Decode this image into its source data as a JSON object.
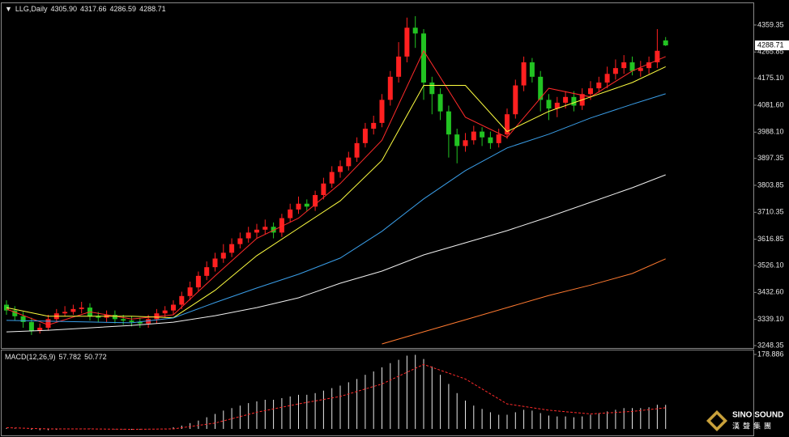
{
  "chart_data": [
    {
      "type": "candlestick",
      "ylim": [
        3240,
        4432
      ],
      "yticks": [
        {
          "value": 4359.35,
          "label": "4359.35"
        },
        {
          "value": 4265.85,
          "label": "4265.85"
        },
        {
          "value": 4175.1,
          "label": "4175.10"
        },
        {
          "value": 4081.6,
          "label": "4081.60"
        },
        {
          "value": 3988.1,
          "label": "3988.10"
        },
        {
          "value": 3897.35,
          "label": "3897.35"
        },
        {
          "value": 3803.85,
          "label": "3803.85"
        },
        {
          "value": 3710.35,
          "label": "3710.35"
        },
        {
          "value": 3616.85,
          "label": "3616.85"
        },
        {
          "value": 3526.1,
          "label": "3526.10"
        },
        {
          "value": 3432.6,
          "label": "3432.60"
        },
        {
          "value": 3339.1,
          "label": "3339.10"
        },
        {
          "value": 3248.35,
          "label": "3248.35"
        }
      ],
      "series": [
        {
          "name": "LLG,Daily",
          "up_color": "#ff2020",
          "down_color": "#22c322",
          "ohlc_labels": [
            "4305.90",
            "4317.66",
            "4286.59",
            "4288.71"
          ],
          "open": [
            3390,
            3370,
            3350,
            3330,
            3300,
            3310,
            3340,
            3360,
            3365,
            3375,
            3380,
            3350,
            3345,
            3355,
            3340,
            3335,
            3330,
            3325,
            3340,
            3360,
            3370,
            3390,
            3420,
            3450,
            3490,
            3520,
            3550,
            3570,
            3600,
            3620,
            3640,
            3650,
            3660,
            3640,
            3690,
            3720,
            3740,
            3730,
            3770,
            3810,
            3850,
            3870,
            3900,
            3950,
            4000,
            4020,
            4100,
            4180,
            4250,
            4350,
            4330,
            4160,
            4120,
            4060,
            3980,
            3940,
            3960,
            3990,
            3970,
            3950,
            3980,
            4050,
            4150,
            4230,
            4180,
            4100,
            4070,
            4090,
            4110,
            4080,
            4120,
            4140,
            4160,
            4190,
            4210,
            4230,
            4200,
            4210,
            4230,
            4305.9
          ],
          "high": [
            3405,
            3385,
            3365,
            3345,
            3325,
            3355,
            3375,
            3385,
            3390,
            3400,
            3395,
            3365,
            3370,
            3370,
            3355,
            3350,
            3345,
            3355,
            3375,
            3385,
            3405,
            3435,
            3470,
            3505,
            3540,
            3570,
            3600,
            3620,
            3640,
            3660,
            3670,
            3685,
            3675,
            3705,
            3740,
            3765,
            3755,
            3785,
            3830,
            3870,
            3890,
            3920,
            3970,
            4020,
            4045,
            4120,
            4200,
            4300,
            4385,
            4390,
            4345,
            4180,
            4140,
            4080,
            4000,
            3985,
            4010,
            4005,
            3990,
            4000,
            4070,
            4170,
            4250,
            4245,
            4200,
            4120,
            4110,
            4130,
            4130,
            4140,
            4165,
            4180,
            4215,
            4240,
            4255,
            4250,
            4235,
            4250,
            4345,
            4317.66
          ],
          "low": [
            3355,
            3335,
            3310,
            3285,
            3290,
            3300,
            3330,
            3350,
            3355,
            3360,
            3335,
            3330,
            3330,
            3325,
            3320,
            3315,
            3310,
            3310,
            3325,
            3345,
            3355,
            3375,
            3405,
            3435,
            3475,
            3505,
            3535,
            3555,
            3585,
            3605,
            3620,
            3635,
            3620,
            3625,
            3675,
            3705,
            3715,
            3715,
            3755,
            3795,
            3830,
            3855,
            3885,
            3935,
            3980,
            4005,
            4080,
            4160,
            4230,
            4280,
            4100,
            4050,
            4030,
            3900,
            3880,
            3920,
            3945,
            3940,
            3930,
            3935,
            3965,
            4035,
            4130,
            4160,
            4060,
            4030,
            4040,
            4070,
            4060,
            4065,
            4100,
            4125,
            4140,
            4170,
            4190,
            4185,
            4180,
            4190,
            4210,
            4286.59
          ],
          "close": [
            3370,
            3350,
            3330,
            3300,
            3310,
            3340,
            3360,
            3365,
            3375,
            3380,
            3350,
            3345,
            3355,
            3340,
            3335,
            3330,
            3325,
            3340,
            3360,
            3370,
            3390,
            3420,
            3450,
            3490,
            3520,
            3550,
            3570,
            3600,
            3620,
            3640,
            3650,
            3660,
            3640,
            3690,
            3720,
            3740,
            3730,
            3770,
            3810,
            3850,
            3870,
            3900,
            3950,
            4000,
            4020,
            4100,
            4180,
            4250,
            4350,
            4330,
            4160,
            4120,
            4060,
            3980,
            3940,
            3960,
            3990,
            3970,
            3950,
            3980,
            4050,
            4150,
            4230,
            4180,
            4100,
            4070,
            4090,
            4110,
            4080,
            4120,
            4140,
            4160,
            4190,
            4210,
            4230,
            4200,
            4210,
            4230,
            4270,
            4288.71
          ]
        },
        {
          "color": "#ff2a2a",
          "x": [
            0,
            5,
            10,
            15,
            20,
            25,
            30,
            35,
            40,
            45,
            50,
            55,
            60,
            65,
            70,
            75,
            79
          ],
          "values": [
            3375,
            3320,
            3365,
            3340,
            3355,
            3490,
            3620,
            3690,
            3810,
            3960,
            4270,
            4040,
            3970,
            4140,
            4110,
            4200,
            4250
          ]
        },
        {
          "color": "#ffff40",
          "x": [
            0,
            5,
            10,
            15,
            20,
            25,
            30,
            35,
            40,
            45,
            50,
            55,
            60,
            65,
            70,
            75,
            79
          ],
          "values": [
            3380,
            3350,
            3350,
            3350,
            3345,
            3440,
            3560,
            3655,
            3750,
            3890,
            4150,
            4150,
            3990,
            4060,
            4110,
            4160,
            4215
          ]
        },
        {
          "color": "#3a9ee8",
          "x": [
            0,
            5,
            10,
            15,
            20,
            25,
            30,
            35,
            40,
            45,
            50,
            55,
            60,
            65,
            70,
            75,
            79
          ],
          "values": [
            3335.6,
            3332.8,
            3330,
            3327.2,
            3344,
            3397.4,
            3447.9,
            3495.6,
            3551.7,
            3644.3,
            3756.5,
            3854.7,
            3933.3,
            3981,
            4037,
            4084.7,
            4121
          ]
        },
        {
          "color": "#f0f0f0",
          "x": [
            0,
            5,
            10,
            15,
            20,
            25,
            30,
            35,
            40,
            45,
            50,
            55,
            60,
            65,
            70,
            75,
            79
          ],
          "values": [
            3295.9,
            3301.5,
            3309.9,
            3318.3,
            3329.6,
            3352,
            3380,
            3413.8,
            3464.3,
            3506.4,
            3562.5,
            3604.6,
            3646.7,
            3694.4,
            3744.9,
            3795.4,
            3840.3
          ]
        },
        {
          "color": "#ff7a30",
          "x": [
            45,
            50,
            55,
            60,
            65,
            70,
            75,
            79
          ],
          "values": [
            3254,
            3296,
            3338,
            3380,
            3422,
            3458,
            3498,
            3549
          ]
        }
      ]
    },
    {
      "type": "bar",
      "title": "MACD(12,26,9)",
      "ylim": [
        -13.6,
        188.6
      ],
      "yticks": [
        178.886
      ],
      "series": [
        {
          "color": "#e8e8e8",
          "values": [
            2,
            1,
            0,
            -2,
            -3,
            -3,
            -2,
            -1,
            0,
            1,
            1,
            0,
            0,
            -1,
            -1,
            -2,
            -2,
            -1,
            0,
            1,
            4,
            8,
            14,
            20,
            28,
            36,
            44,
            50,
            56,
            62,
            66,
            70,
            70,
            74,
            78,
            82,
            82,
            86,
            92,
            98,
            104,
            112,
            120,
            130,
            138,
            148,
            158,
            166,
            176,
            178,
            168,
            150,
            130,
            108,
            86,
            68,
            56,
            48,
            40,
            34,
            34,
            40,
            46,
            44,
            38,
            32,
            30,
            30,
            28,
            30,
            34,
            38,
            42,
            46,
            50,
            50,
            50,
            52,
            58,
            57.782
          ]
        },
        {
          "color": "#ff2a2a",
          "dashed": true,
          "x": [
            0,
            5,
            10,
            15,
            20,
            25,
            30,
            35,
            40,
            45,
            50,
            55,
            60,
            65,
            70,
            75,
            79
          ],
          "values": [
            3,
            0,
            0,
            -1,
            0,
            14,
            40,
            60,
            78,
            108,
            155,
            120,
            60,
            45,
            36,
            42,
            50.772
          ]
        }
      ]
    }
  ],
  "logo": {
    "name": "SINO SOUND",
    "chinese": "漢聲集團"
  }
}
